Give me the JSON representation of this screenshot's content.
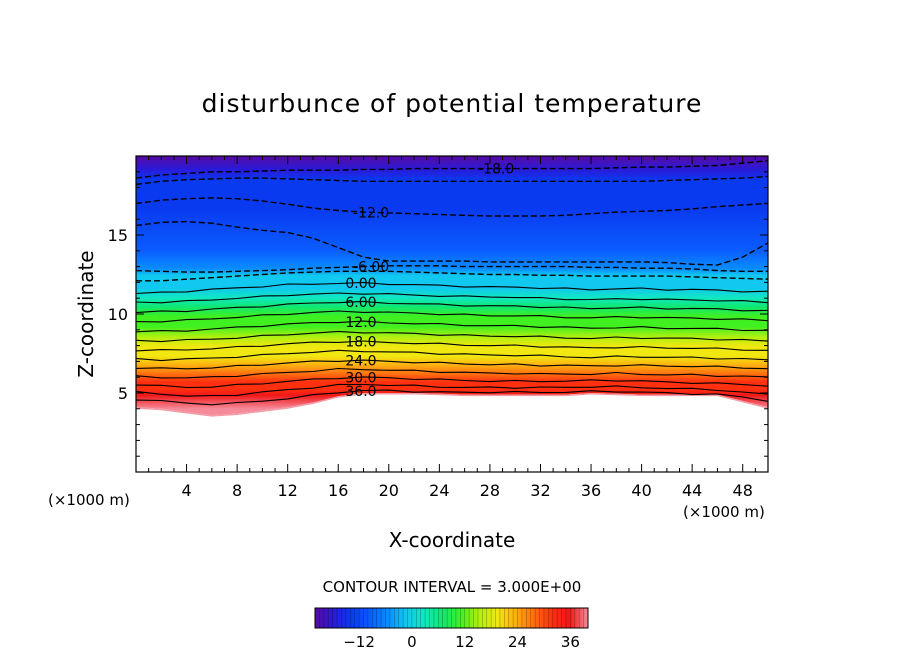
{
  "chart_data": {
    "type": "contour",
    "title": "disturbunce of potential temperature",
    "xlabel": "X-coordinate",
    "ylabel": "Z-coordinate",
    "x_unit": "(×1000 m)",
    "x_unit_right": "(×1000 m)",
    "xlim": [
      0,
      50
    ],
    "ylim": [
      0,
      20
    ],
    "x_ticks": [
      4,
      8,
      12,
      16,
      20,
      24,
      28,
      32,
      36,
      40,
      44,
      48
    ],
    "y_ticks": [
      5,
      10,
      15
    ],
    "contour_interval_text": "CONTOUR INTERVAL = 3.000E+00",
    "contour_interval": 3.0,
    "value_range": [
      -22,
      40
    ],
    "colorbar_ticks": [
      -12,
      0,
      12,
      24,
      36
    ],
    "x_samples": [
      0,
      2,
      4,
      6,
      8,
      10,
      12,
      14,
      16,
      18,
      20,
      22,
      24,
      26,
      28,
      30,
      32,
      34,
      36,
      38,
      40,
      42,
      44,
      46,
      48,
      50
    ],
    "terrain_height": [
      4.1,
      4.0,
      3.8,
      3.6,
      3.7,
      3.9,
      4.1,
      4.4,
      4.8,
      5.0,
      5.0,
      5.0,
      4.95,
      4.9,
      4.9,
      4.9,
      4.9,
      4.9,
      5.0,
      4.95,
      4.9,
      4.9,
      4.9,
      4.9,
      4.5,
      4.1
    ],
    "contours": [
      {
        "level": -18,
        "label": "-18.0",
        "label_x": 28.5,
        "dashed": true,
        "z": [
          18.6,
          18.8,
          18.9,
          19.0,
          19.0,
          19.05,
          19.1,
          19.1,
          19.1,
          19.15,
          19.15,
          19.2,
          19.2,
          19.2,
          19.2,
          19.2,
          19.2,
          19.2,
          19.2,
          19.25,
          19.3,
          19.3,
          19.35,
          19.4,
          19.55,
          19.7
        ]
      },
      {
        "level": -15,
        "label": "",
        "label_x": 0,
        "dashed": true,
        "z": [
          18.2,
          18.4,
          18.5,
          18.55,
          18.6,
          18.6,
          18.55,
          18.5,
          18.45,
          18.4,
          18.4,
          18.4,
          18.4,
          18.4,
          18.4,
          18.4,
          18.4,
          18.4,
          18.4,
          18.4,
          18.4,
          18.45,
          18.5,
          18.55,
          18.6,
          18.7
        ]
      },
      {
        "level": -12,
        "label": "-12.0",
        "label_x": 18.6,
        "dashed": true,
        "z": [
          17.0,
          17.2,
          17.3,
          17.35,
          17.3,
          17.15,
          16.95,
          16.7,
          16.55,
          16.45,
          16.4,
          16.35,
          16.3,
          16.25,
          16.2,
          16.2,
          16.2,
          16.25,
          16.35,
          16.45,
          16.5,
          16.55,
          16.65,
          16.8,
          16.9,
          17.0
        ]
      },
      {
        "level": -9,
        "label": "",
        "label_x": 0,
        "dashed": true,
        "z": [
          15.6,
          15.8,
          15.85,
          15.75,
          15.5,
          15.3,
          15.15,
          14.8,
          14.2,
          13.6,
          13.35,
          13.35,
          13.35,
          13.35,
          13.3,
          13.3,
          13.3,
          13.3,
          13.3,
          13.3,
          13.3,
          13.25,
          13.15,
          13.1,
          13.6,
          14.5
        ]
      },
      {
        "level": -6,
        "label": "-6.00",
        "label_x": 18.6,
        "dashed": true,
        "z": [
          12.75,
          12.7,
          12.65,
          12.65,
          12.7,
          12.75,
          12.8,
          12.9,
          12.95,
          13.0,
          13.05,
          13.05,
          13.05,
          13.0,
          13.0,
          13.0,
          13.0,
          13.0,
          12.95,
          12.95,
          12.9,
          12.9,
          12.85,
          12.75,
          12.7,
          12.7
        ]
      },
      {
        "level": -3,
        "label": "",
        "label_x": 0,
        "dashed": true,
        "z": [
          12.1,
          12.1,
          12.2,
          12.3,
          12.4,
          12.5,
          12.6,
          12.65,
          12.7,
          12.7,
          12.7,
          12.65,
          12.6,
          12.55,
          12.5,
          12.5,
          12.45,
          12.45,
          12.4,
          12.4,
          12.4,
          12.4,
          12.35,
          12.3,
          12.25,
          12.2
        ]
      },
      {
        "level": 0,
        "label": "0.00",
        "label_x": 17.8,
        "dashed": false,
        "z": [
          11.3,
          11.35,
          11.45,
          11.55,
          11.65,
          11.75,
          11.85,
          11.9,
          11.95,
          11.95,
          11.9,
          11.85,
          11.8,
          11.75,
          11.7,
          11.7,
          11.65,
          11.6,
          11.55,
          11.6,
          11.6,
          11.55,
          11.55,
          11.5,
          11.45,
          11.4
        ]
      },
      {
        "level": 3,
        "label": "",
        "label_x": 0,
        "dashed": false,
        "z": [
          10.75,
          10.75,
          10.8,
          10.9,
          11.0,
          11.1,
          11.2,
          11.25,
          11.3,
          11.3,
          11.25,
          11.2,
          11.15,
          11.1,
          11.1,
          11.05,
          11.0,
          10.95,
          10.9,
          10.95,
          10.95,
          10.9,
          10.9,
          10.85,
          10.8,
          10.75
        ]
      },
      {
        "level": 6,
        "label": "6.00",
        "label_x": 17.8,
        "dashed": false,
        "z": [
          10.1,
          10.15,
          10.2,
          10.3,
          10.4,
          10.5,
          10.6,
          10.7,
          10.75,
          10.75,
          10.7,
          10.65,
          10.6,
          10.55,
          10.5,
          10.5,
          10.45,
          10.4,
          10.35,
          10.4,
          10.4,
          10.35,
          10.35,
          10.3,
          10.25,
          10.2
        ]
      },
      {
        "level": 9,
        "label": "",
        "label_x": 0,
        "dashed": false,
        "z": [
          9.5,
          9.55,
          9.6,
          9.7,
          9.8,
          9.9,
          10.0,
          10.1,
          10.15,
          10.15,
          10.1,
          10.05,
          10.0,
          9.95,
          9.9,
          9.9,
          9.85,
          9.8,
          9.75,
          9.8,
          9.8,
          9.75,
          9.75,
          9.7,
          9.65,
          9.6
        ]
      },
      {
        "level": 12,
        "label": "12.0",
        "label_x": 17.8,
        "dashed": false,
        "z": [
          8.9,
          8.9,
          8.95,
          9.05,
          9.15,
          9.25,
          9.35,
          9.45,
          9.5,
          9.5,
          9.45,
          9.4,
          9.35,
          9.3,
          9.25,
          9.25,
          9.2,
          9.15,
          9.1,
          9.15,
          9.15,
          9.1,
          9.1,
          9.05,
          9.0,
          8.95
        ]
      },
      {
        "level": 15,
        "label": "",
        "label_x": 0,
        "dashed": false,
        "z": [
          8.3,
          8.3,
          8.35,
          8.4,
          8.5,
          8.6,
          8.7,
          8.8,
          8.85,
          8.85,
          8.8,
          8.75,
          8.7,
          8.65,
          8.6,
          8.6,
          8.55,
          8.5,
          8.45,
          8.5,
          8.5,
          8.45,
          8.45,
          8.4,
          8.35,
          8.3
        ]
      },
      {
        "level": 18,
        "label": "18.0",
        "label_x": 17.8,
        "dashed": false,
        "z": [
          7.7,
          7.7,
          7.75,
          7.8,
          7.9,
          8.0,
          8.1,
          8.2,
          8.25,
          8.25,
          8.2,
          8.15,
          8.1,
          8.05,
          8.0,
          8.0,
          7.95,
          7.9,
          7.85,
          7.9,
          7.9,
          7.85,
          7.85,
          7.8,
          7.75,
          7.7
        ]
      },
      {
        "level": 21,
        "label": "",
        "label_x": 0,
        "dashed": false,
        "z": [
          7.15,
          7.1,
          7.15,
          7.2,
          7.3,
          7.4,
          7.5,
          7.6,
          7.65,
          7.65,
          7.6,
          7.55,
          7.5,
          7.45,
          7.4,
          7.4,
          7.35,
          7.3,
          7.25,
          7.3,
          7.3,
          7.25,
          7.25,
          7.2,
          7.15,
          7.1
        ]
      },
      {
        "level": 24,
        "label": "24.0",
        "label_x": 17.8,
        "dashed": false,
        "z": [
          6.6,
          6.55,
          6.55,
          6.6,
          6.7,
          6.8,
          6.9,
          7.0,
          7.05,
          7.05,
          7.0,
          6.95,
          6.9,
          6.85,
          6.8,
          6.8,
          6.75,
          6.75,
          6.7,
          6.75,
          6.75,
          6.7,
          6.7,
          6.65,
          6.6,
          6.55
        ]
      },
      {
        "level": 27,
        "label": "",
        "label_x": 0,
        "dashed": false,
        "z": [
          6.05,
          6.0,
          5.95,
          6.0,
          6.1,
          6.2,
          6.3,
          6.4,
          6.5,
          6.5,
          6.45,
          6.4,
          6.35,
          6.3,
          6.25,
          6.25,
          6.2,
          6.2,
          6.2,
          6.25,
          6.2,
          6.15,
          6.15,
          6.1,
          6.05,
          6.0
        ]
      },
      {
        "level": 30,
        "label": "30.0",
        "label_x": 17.8,
        "dashed": false,
        "z": [
          5.55,
          5.45,
          5.35,
          5.4,
          5.5,
          5.6,
          5.75,
          5.85,
          5.95,
          6.0,
          5.95,
          5.9,
          5.85,
          5.8,
          5.75,
          5.75,
          5.75,
          5.75,
          5.8,
          5.8,
          5.75,
          5.7,
          5.65,
          5.6,
          5.55,
          5.45
        ]
      },
      {
        "level": 33,
        "label": "",
        "label_x": 0,
        "dashed": false,
        "z": [
          5.05,
          4.95,
          4.8,
          4.8,
          4.9,
          5.05,
          5.2,
          5.35,
          5.5,
          5.55,
          5.5,
          5.45,
          5.4,
          5.35,
          5.35,
          5.35,
          5.35,
          5.35,
          5.4,
          5.4,
          5.35,
          5.3,
          5.25,
          5.2,
          5.05,
          4.9
        ]
      },
      {
        "level": 36,
        "label": "36.0",
        "label_x": 17.8,
        "dashed": false,
        "z": [
          4.6,
          4.5,
          4.35,
          4.3,
          4.35,
          4.5,
          4.65,
          4.85,
          5.05,
          5.15,
          5.15,
          5.1,
          5.05,
          5.05,
          5.05,
          5.05,
          5.05,
          5.05,
          5.1,
          5.1,
          5.05,
          5.0,
          4.95,
          4.9,
          4.75,
          4.5
        ]
      }
    ]
  }
}
